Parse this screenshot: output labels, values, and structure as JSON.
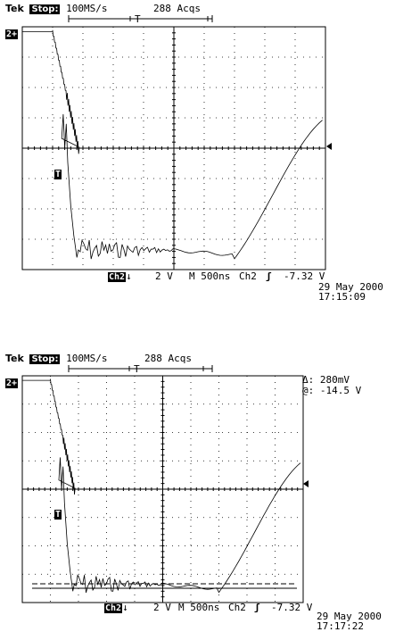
{
  "panels": [
    {
      "id": "top",
      "brand": "Tek",
      "run_state": "Stop:",
      "sample_rate": "100MS/s",
      "acquisitions": "288 Acqs",
      "trigger_position_marker": "T",
      "channel_marker": "2+",
      "trigger_marker": "T",
      "channel_label": "Ch2",
      "coupling_icon": "down-arrow-icon",
      "volts_per_div": "2 V",
      "timebase": "M 500ns",
      "trigger_source": "Ch2",
      "trigger_slope_icon": "rising-edge-icon",
      "trigger_level": "-7.32 V",
      "date": "29 May 2000",
      "time": "17:15:09",
      "cursor_readout": null
    },
    {
      "id": "bottom",
      "brand": "Tek",
      "run_state": "Stop:",
      "sample_rate": "100MS/s",
      "acquisitions": "288 Acqs",
      "trigger_position_marker": "T",
      "channel_marker": "2+",
      "trigger_marker": "T",
      "channel_label": "Ch2",
      "coupling_icon": "down-arrow-icon",
      "volts_per_div": "2 V",
      "timebase": "M 500ns",
      "trigger_source": "Ch2",
      "trigger_slope_icon": "rising-edge-icon",
      "trigger_level": "-7.32 V",
      "date": "29 May 2000",
      "time": "17:17:22",
      "cursor_readout": {
        "delta": "Δ: 280mV",
        "at": "@: -14.5 V"
      }
    }
  ]
}
